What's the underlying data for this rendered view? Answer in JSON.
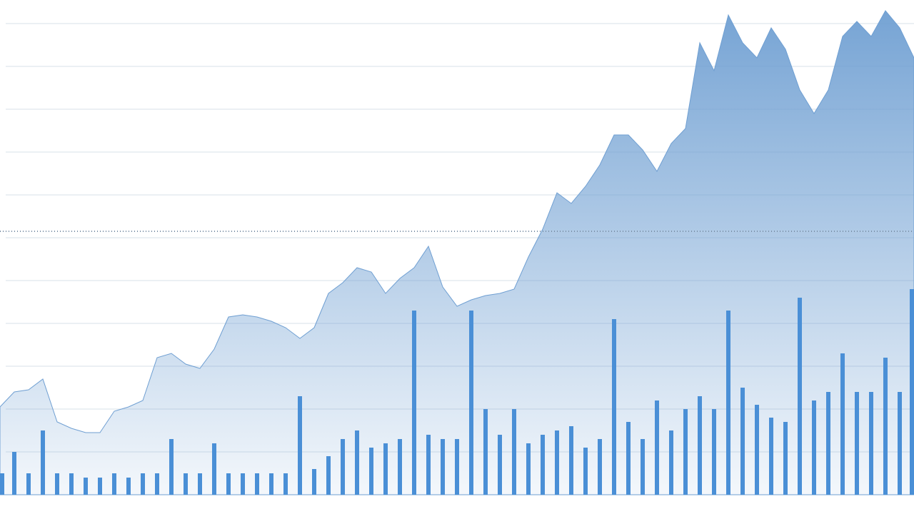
{
  "chart_data": {
    "type": "area",
    "x": [
      0,
      1,
      2,
      3,
      4,
      5,
      6,
      7,
      8,
      9,
      10,
      11,
      12,
      13,
      14,
      15,
      16,
      17,
      18,
      19,
      20,
      21,
      22,
      23,
      24,
      25,
      26,
      27,
      28,
      29,
      30,
      31,
      32,
      33,
      34,
      35,
      36,
      37,
      38,
      39,
      40,
      41,
      42,
      43,
      44,
      45,
      46,
      47,
      48,
      49,
      50,
      51,
      52,
      53,
      54,
      55,
      56,
      57,
      58,
      59,
      60,
      61,
      62,
      63,
      64
    ],
    "xlim": [
      0,
      64
    ],
    "ylim": [
      0,
      11.55
    ],
    "yticks": [
      1,
      2,
      3,
      4,
      5,
      6,
      7,
      8,
      9,
      10,
      11
    ],
    "grid": true,
    "reference_line": 6.15,
    "reference_color": "#7a8fa6",
    "series": [
      {
        "color": "#6f9fd2",
        "values": [
          2.05,
          2.4,
          2.45,
          2.7,
          1.7,
          1.55,
          1.45,
          1.45,
          1.95,
          2.05,
          2.2,
          3.2,
          3.3,
          3.05,
          2.95,
          3.4,
          4.15,
          4.2,
          4.15,
          4.05,
          3.9,
          3.65,
          3.9,
          4.7,
          4.95,
          5.3,
          5.2,
          4.7,
          5.05,
          5.3,
          5.8,
          4.85,
          4.4,
          4.55,
          4.65,
          4.7,
          4.8,
          5.55,
          6.2,
          7.05,
          6.8,
          7.2,
          7.7,
          8.4,
          8.4,
          8.05,
          7.55,
          8.2,
          8.55,
          10.55,
          9.9,
          11.2,
          10.55,
          10.2,
          10.9,
          10.4,
          9.45,
          8.9,
          9.45,
          10.7,
          11.05,
          10.7,
          11.3,
          10.9,
          10.2
        ]
      },
      {
        "type": "bar",
        "color": "#4a8fd6",
        "values": [
          0.5,
          1.0,
          0.5,
          1.5,
          0.5,
          0.5,
          0.4,
          0.4,
          0.5,
          0.4,
          0.5,
          0.5,
          1.3,
          0.5,
          0.5,
          1.2,
          0.5,
          0.5,
          0.5,
          0.5,
          0.5,
          2.3,
          0.6,
          0.9,
          1.3,
          1.5,
          1.1,
          1.2,
          1.3,
          4.3,
          1.4,
          1.3,
          1.3,
          4.3,
          2.0,
          1.4,
          2.0,
          1.2,
          1.4,
          1.5,
          1.6,
          1.1,
          1.3,
          4.1,
          1.7,
          1.3,
          2.2,
          1.5,
          2.0,
          2.3,
          2.0,
          4.3,
          2.5,
          2.1,
          1.8,
          1.7,
          4.6,
          2.2,
          2.4,
          3.3,
          2.4,
          2.4,
          3.2,
          2.4,
          4.8
        ]
      }
    ]
  }
}
